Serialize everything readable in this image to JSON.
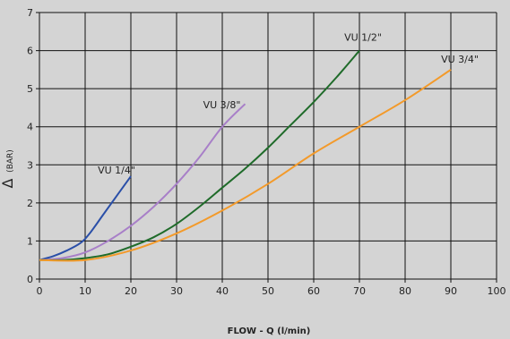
{
  "chart_data": {
    "type": "line",
    "title": "",
    "xlabel": "FLOW - Q (l/min)",
    "ylabel_symbol": "Δ",
    "ylabel_unit": "(BAR)",
    "xlim": [
      0,
      100
    ],
    "ylim": [
      0,
      7
    ],
    "xticks": [
      "0",
      "10",
      "20",
      "30",
      "40",
      "50",
      "60",
      "70",
      "80",
      "90",
      "100"
    ],
    "yticks": [
      "0",
      "1",
      "2",
      "3",
      "4",
      "5",
      "6",
      "7"
    ],
    "grid": true,
    "colors": {
      "background": "#d4d4d4",
      "grid": "#111111"
    },
    "series": [
      {
        "name": "VU 1/4\"",
        "color": "#2a4fa8",
        "x": [
          0,
          3,
          6,
          9,
          11,
          14,
          17,
          20
        ],
        "y": [
          0.5,
          0.6,
          0.75,
          0.95,
          1.2,
          1.7,
          2.2,
          2.7
        ]
      },
      {
        "name": "VU 3/8\"",
        "color": "#a87fc8",
        "x": [
          0,
          5,
          10,
          15,
          20,
          25,
          30,
          35,
          40,
          45
        ],
        "y": [
          0.5,
          0.55,
          0.7,
          1.0,
          1.4,
          1.9,
          2.5,
          3.2,
          4.0,
          4.6
        ]
      },
      {
        "name": "VU 1/2\"",
        "color": "#1f6b2a",
        "x": [
          0,
          5,
          10,
          15,
          20,
          25,
          30,
          35,
          40,
          45,
          50,
          55,
          60,
          65,
          70
        ],
        "y": [
          0.5,
          0.5,
          0.55,
          0.65,
          0.85,
          1.1,
          1.45,
          1.9,
          2.4,
          2.9,
          3.45,
          4.05,
          4.65,
          5.3,
          6.0
        ]
      },
      {
        "name": "VU 3/4\"",
        "color": "#f39a2a",
        "x": [
          0,
          10,
          20,
          30,
          40,
          50,
          60,
          70,
          80,
          90
        ],
        "y": [
          0.5,
          0.5,
          0.75,
          1.2,
          1.8,
          2.5,
          3.3,
          4.0,
          4.7,
          5.5
        ]
      }
    ]
  }
}
